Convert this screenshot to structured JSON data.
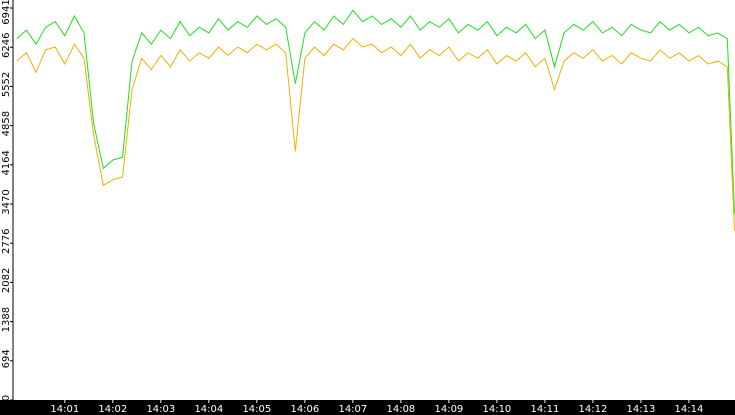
{
  "chart_data": {
    "type": "line",
    "x": [
      0,
      0.2,
      0.4,
      0.6,
      0.8,
      1,
      1.2,
      1.4,
      1.6,
      1.8,
      2,
      2.2,
      2.4,
      2.6,
      2.8,
      3,
      3.2,
      3.4,
      3.6,
      3.8,
      4,
      4.2,
      4.4,
      4.6,
      4.8,
      5,
      5.2,
      5.4,
      5.6,
      5.8,
      6,
      6.2,
      6.4,
      6.6,
      6.8,
      7,
      7.2,
      7.4,
      7.6,
      7.8,
      8,
      8.2,
      8.4,
      8.6,
      8.8,
      9,
      9.2,
      9.4,
      9.6,
      9.8,
      10,
      10.2,
      10.4,
      10.6,
      10.8,
      11,
      11.2,
      11.4,
      11.6,
      11.8,
      12,
      12.2,
      12.4,
      12.6,
      12.8,
      13,
      13.2,
      13.4,
      13.6,
      13.8,
      14,
      14.2,
      14.4,
      14.6,
      14.8,
      14.95
    ],
    "series": [
      {
        "color": "#22dd22",
        "values": [
          6400,
          6550,
          6300,
          6600,
          6700,
          6450,
          6800,
          6500,
          4900,
          4100,
          4250,
          4300,
          6000,
          6500,
          6300,
          6550,
          6400,
          6700,
          6450,
          6600,
          6500,
          6750,
          6550,
          6700,
          6600,
          6800,
          6650,
          6750,
          6600,
          5600,
          6500,
          6700,
          6550,
          6800,
          6650,
          6900,
          6700,
          6800,
          6650,
          6750,
          6600,
          6800,
          6550,
          6700,
          6600,
          6750,
          6500,
          6650,
          6550,
          6700,
          6450,
          6600,
          6500,
          6650,
          6400,
          6550,
          5900,
          6500,
          6650,
          6550,
          6700,
          6500,
          6600,
          6450,
          6650,
          6550,
          6500,
          6700,
          6550,
          6650,
          6500,
          6600,
          6450,
          6500,
          6400,
          3300
        ]
      },
      {
        "color": "#f0b000",
        "values": [
          6000,
          6150,
          5800,
          6200,
          6250,
          5950,
          6300,
          6050,
          4700,
          3800,
          3900,
          3950,
          5500,
          6050,
          5850,
          6100,
          5900,
          6200,
          6000,
          6150,
          6050,
          6250,
          6100,
          6250,
          6150,
          6300,
          6200,
          6300,
          6150,
          4400,
          6050,
          6250,
          6100,
          6300,
          6200,
          6400,
          6250,
          6300,
          6150,
          6250,
          6100,
          6300,
          6050,
          6200,
          6100,
          6250,
          6000,
          6150,
          6050,
          6200,
          5950,
          6100,
          6000,
          6150,
          5900,
          6050,
          5500,
          6000,
          6150,
          6050,
          6200,
          6000,
          6100,
          5950,
          6150,
          6050,
          6000,
          6200,
          6050,
          6150,
          6000,
          6100,
          5950,
          6000,
          5900,
          3000
        ]
      }
    ],
    "xlim": [
      -0.08,
      14.96
    ],
    "xticks": [
      {
        "value": 1,
        "label": "14:01"
      },
      {
        "value": 2,
        "label": "14:02"
      },
      {
        "value": 3,
        "label": "14:03"
      },
      {
        "value": 4,
        "label": "14:04"
      },
      {
        "value": 5,
        "label": "14:05"
      },
      {
        "value": 6,
        "label": "14:06"
      },
      {
        "value": 7,
        "label": "14:07"
      },
      {
        "value": 8,
        "label": "14:08"
      },
      {
        "value": 9,
        "label": "14:09"
      },
      {
        "value": 10,
        "label": "14:10"
      },
      {
        "value": 11,
        "label": "14:11"
      },
      {
        "value": 12,
        "label": "14:12"
      },
      {
        "value": 13,
        "label": "14:13"
      },
      {
        "value": 14,
        "label": "14:14"
      }
    ],
    "ylim": [
      0,
      6941
    ],
    "yticks": [
      0,
      694,
      1388,
      2082,
      2776,
      3470,
      4164,
      4858,
      5552,
      6246,
      6941
    ]
  }
}
